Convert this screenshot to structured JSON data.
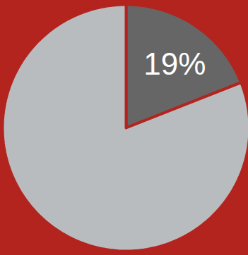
{
  "chart_data": {
    "type": "pie",
    "categories": [
      null,
      null
    ],
    "values": [
      19,
      81
    ],
    "value_labels": [
      "19%",
      null
    ],
    "colors": [
      "#666666",
      "#b9bcbf"
    ],
    "data_labels": true
  }
}
